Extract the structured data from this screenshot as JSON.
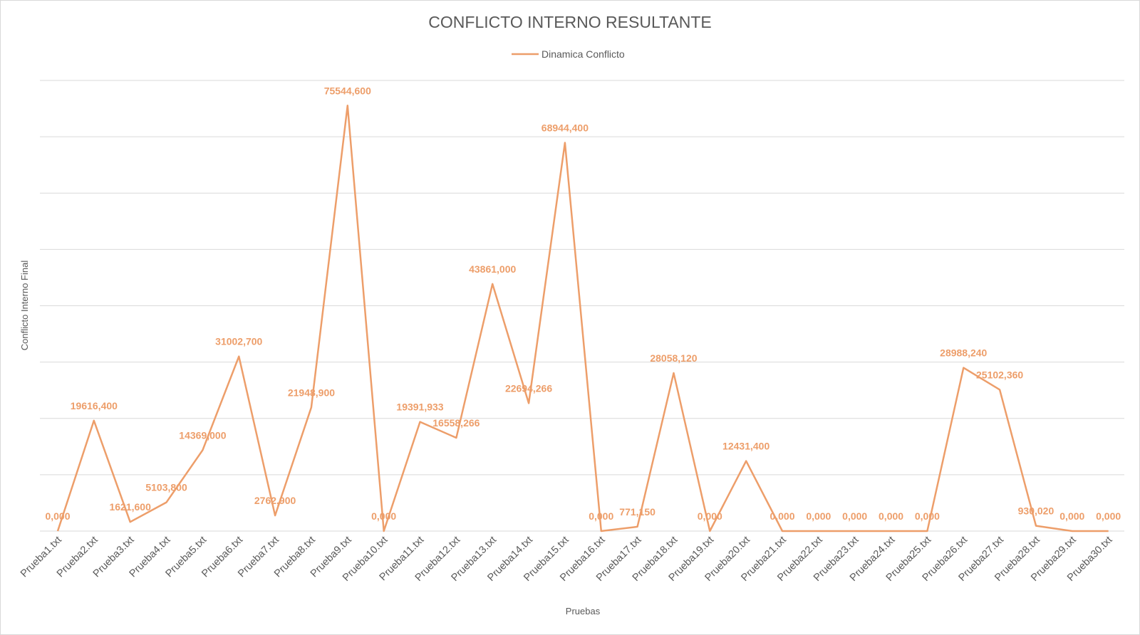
{
  "chart_data": {
    "type": "line",
    "title": "CONFLICTO INTERNO RESULTANTE",
    "xlabel": "Pruebas",
    "ylabel": "Conflicto Interno Final",
    "legend_position": "top",
    "grid": true,
    "ylim": [
      0,
      80000000
    ],
    "line_color": "#ED9E6A",
    "categories": [
      "Prueba1.txt",
      "Prueba2.txt",
      "Prueba3.txt",
      "Prueba4.txt",
      "Prueba5.txt",
      "Prueba6.txt",
      "Prueba7.txt",
      "Prueba8.txt",
      "Prueba9.txt",
      "Prueba10.txt",
      "Prueba11.txt",
      "Prueba12.txt",
      "Prueba13.txt",
      "Prueba14.txt",
      "Prueba15.txt",
      "Prueba16.txt",
      "Prueba17.txt",
      "Prueba18.txt",
      "Prueba19.txt",
      "Prueba20.txt",
      "Prueba21.txt",
      "Prueba22.txt",
      "Prueba23.txt",
      "Prueba24.txt",
      "Prueba25.txt",
      "Prueba26.txt",
      "Prueba27.txt",
      "Prueba28.txt",
      "Prueba29.txt",
      "Prueba30.txt"
    ],
    "series": [
      {
        "name": "Dinamica Conflicto",
        "values": [
          0,
          19616400,
          1621600,
          5103800,
          14369000,
          31002700,
          2762900,
          21948900,
          75544600,
          0,
          19391933,
          16558266,
          43861000,
          22694266,
          68944400,
          0,
          771150,
          28058120,
          0,
          12431400,
          0,
          0,
          0,
          0,
          0,
          28988240,
          25102360,
          930020,
          0,
          0
        ],
        "labels": [
          "0,000",
          "19616,400",
          "1621,600",
          "5103,800",
          "14369,000",
          "31002,700",
          "2762,900",
          "21948,900",
          "75544,600",
          "0,000",
          "19391,933",
          "16558,266",
          "43861,000",
          "22694,266",
          "68944,400",
          "0,000",
          "771,150",
          "28058,120",
          "0,000",
          "12431,400",
          "0,000",
          "0,000",
          "0,000",
          "0,000",
          "0,000",
          "28988,240",
          "25102,360",
          "930,020",
          "0,000",
          "0,000"
        ]
      }
    ]
  }
}
